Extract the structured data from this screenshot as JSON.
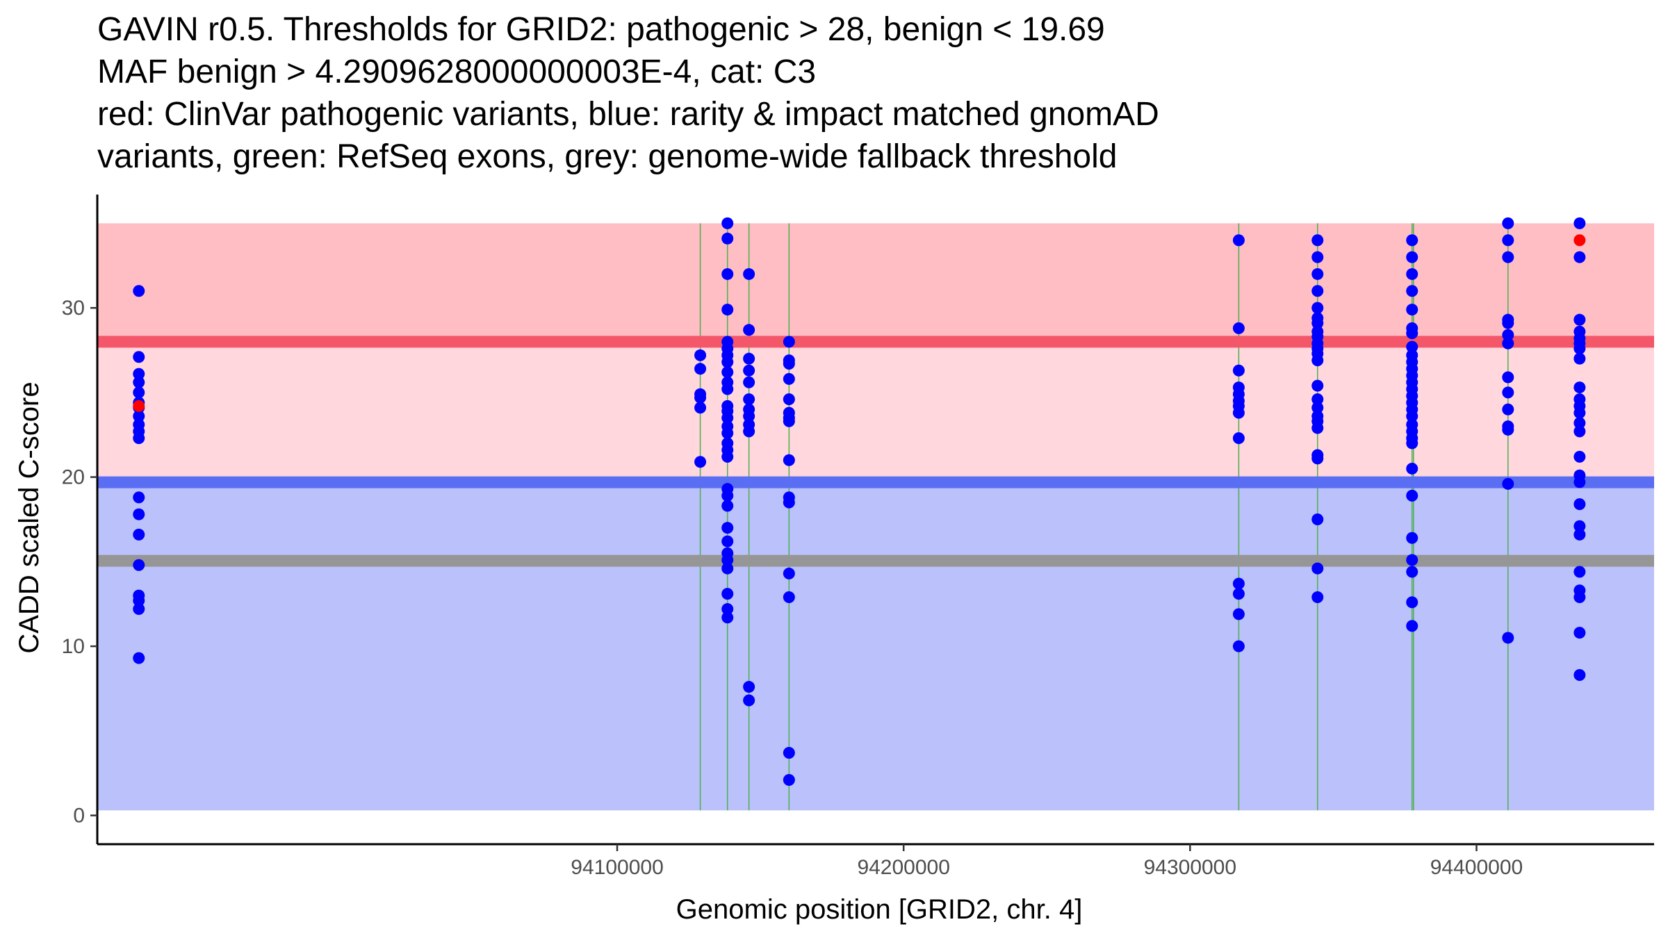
{
  "chart_data": {
    "type": "scatter",
    "title_lines": [
      "GAVIN r0.5. Thresholds for GRID2: pathogenic > 28, benign < 19.69",
      "MAF benign > 4.2909628000000003E-4, cat: C3",
      "red: ClinVar pathogenic variants, blue: rarity & impact matched gnomAD",
      "variants, green: RefSeq exons, grey: genome-wide fallback threshold"
    ],
    "xlabel": "Genomic position [GRID2, chr. 4]",
    "ylabel": "CADD scaled C-score",
    "xlim": [
      93918500,
      94462000
    ],
    "ylim": [
      -1.7,
      36.7
    ],
    "x_ticks": [
      94100000,
      94200000,
      94300000,
      94400000
    ],
    "x_tick_labels": [
      "94100000",
      "94200000",
      "94300000",
      "94400000"
    ],
    "y_ticks": [
      0,
      10,
      20,
      30
    ],
    "y_tick_labels": [
      "0",
      "10",
      "20",
      "30"
    ],
    "regions": {
      "pathogenic_high": {
        "from": 28,
        "to": 35,
        "color": "#ffbdc4"
      },
      "pathogenic_low": {
        "from": 19.69,
        "to": 28,
        "color": "#ffd7dd"
      },
      "benign": {
        "from": 0.3,
        "to": 19.69,
        "color": "#bbc1fa"
      }
    },
    "thresholds": {
      "pathogenic": {
        "value": 28,
        "color": "#f4576a"
      },
      "benign": {
        "value": 19.69,
        "color": "#5a6ef3"
      },
      "fallback": {
        "value": 15.05,
        "color": "#969696"
      }
    },
    "exon_positions": [
      94129000,
      94138500,
      94146000,
      94160000,
      94317000,
      94344500,
      94377500,
      94378000,
      94411000
    ],
    "colors": {
      "gnomad": "#0000ff",
      "clinvar": "#ff0000",
      "exon": "#4caf50"
    },
    "series": [
      {
        "name": "gnomAD",
        "points": [
          [
            93933000,
            31
          ],
          [
            93933000,
            27.1
          ],
          [
            93933000,
            26.1
          ],
          [
            93933000,
            25.6
          ],
          [
            93933000,
            25.0
          ],
          [
            93933000,
            24.4
          ],
          [
            93933000,
            24.1
          ],
          [
            93933000,
            23.6
          ],
          [
            93933000,
            23.1
          ],
          [
            93933000,
            22.7
          ],
          [
            93933000,
            22.3
          ],
          [
            93933000,
            18.8
          ],
          [
            93933000,
            17.8
          ],
          [
            93933000,
            16.6
          ],
          [
            93933000,
            14.8
          ],
          [
            93933000,
            13.0
          ],
          [
            93933000,
            12.7
          ],
          [
            93933000,
            12.2
          ],
          [
            93933000,
            9.3
          ],
          [
            94129000,
            27.2
          ],
          [
            94129000,
            26.4
          ],
          [
            94129000,
            24.9
          ],
          [
            94129000,
            24.7
          ],
          [
            94129000,
            24.1
          ],
          [
            94129000,
            20.9
          ],
          [
            94138500,
            35.0
          ],
          [
            94138500,
            34.1
          ],
          [
            94138500,
            32.0
          ],
          [
            94138500,
            29.9
          ],
          [
            94138500,
            28.0
          ],
          [
            94138500,
            27.6
          ],
          [
            94138500,
            27.2
          ],
          [
            94138500,
            26.8
          ],
          [
            94138500,
            26.2
          ],
          [
            94138500,
            25.6
          ],
          [
            94138500,
            25.2
          ],
          [
            94138500,
            24.2
          ],
          [
            94138500,
            23.9
          ],
          [
            94138500,
            23.5
          ],
          [
            94138500,
            23.0
          ],
          [
            94138500,
            22.6
          ],
          [
            94138500,
            22.0
          ],
          [
            94138500,
            21.6
          ],
          [
            94138500,
            21.2
          ],
          [
            94138500,
            19.3
          ],
          [
            94138500,
            18.9
          ],
          [
            94138500,
            18.3
          ],
          [
            94138500,
            17.0
          ],
          [
            94138500,
            16.2
          ],
          [
            94138500,
            15.5
          ],
          [
            94138500,
            15.1
          ],
          [
            94138500,
            14.6
          ],
          [
            94138500,
            13.1
          ],
          [
            94138500,
            12.2
          ],
          [
            94138500,
            11.7
          ],
          [
            94146000,
            32.0
          ],
          [
            94146000,
            28.7
          ],
          [
            94146000,
            27.0
          ],
          [
            94146000,
            26.3
          ],
          [
            94146000,
            25.6
          ],
          [
            94146000,
            24.6
          ],
          [
            94146000,
            24.0
          ],
          [
            94146000,
            23.6
          ],
          [
            94146000,
            23.1
          ],
          [
            94146000,
            22.7
          ],
          [
            94146000,
            7.6
          ],
          [
            94146000,
            6.8
          ],
          [
            94160000,
            28.0
          ],
          [
            94160000,
            26.9
          ],
          [
            94160000,
            26.7
          ],
          [
            94160000,
            25.8
          ],
          [
            94160000,
            24.6
          ],
          [
            94160000,
            23.8
          ],
          [
            94160000,
            23.5
          ],
          [
            94160000,
            23.3
          ],
          [
            94160000,
            21.0
          ],
          [
            94160000,
            18.8
          ],
          [
            94160000,
            18.5
          ],
          [
            94160000,
            14.3
          ],
          [
            94160000,
            12.9
          ],
          [
            94160000,
            3.7
          ],
          [
            94160000,
            2.1
          ],
          [
            94317000,
            34.0
          ],
          [
            94317000,
            28.8
          ],
          [
            94317000,
            26.3
          ],
          [
            94317000,
            25.3
          ],
          [
            94317000,
            24.9
          ],
          [
            94317000,
            24.5
          ],
          [
            94317000,
            24.2
          ],
          [
            94317000,
            23.8
          ],
          [
            94317000,
            22.3
          ],
          [
            94317000,
            13.7
          ],
          [
            94317000,
            13.1
          ],
          [
            94317000,
            11.9
          ],
          [
            94317000,
            10.0
          ],
          [
            94344500,
            34.0
          ],
          [
            94344500,
            33.0
          ],
          [
            94344500,
            32.0
          ],
          [
            94344500,
            31.0
          ],
          [
            94344500,
            30.0
          ],
          [
            94344500,
            29.4
          ],
          [
            94344500,
            29.1
          ],
          [
            94344500,
            28.6
          ],
          [
            94344500,
            28.3
          ],
          [
            94344500,
            27.9
          ],
          [
            94344500,
            27.6
          ],
          [
            94344500,
            27.3
          ],
          [
            94344500,
            26.9
          ],
          [
            94344500,
            25.4
          ],
          [
            94344500,
            24.6
          ],
          [
            94344500,
            24.1
          ],
          [
            94344500,
            23.6
          ],
          [
            94344500,
            23.3
          ],
          [
            94344500,
            22.9
          ],
          [
            94344500,
            21.3
          ],
          [
            94344500,
            21.1
          ],
          [
            94344500,
            17.5
          ],
          [
            94344500,
            14.6
          ],
          [
            94344500,
            12.9
          ],
          [
            94377500,
            34.0
          ],
          [
            94377500,
            33.0
          ],
          [
            94377500,
            32.0
          ],
          [
            94377500,
            31.0
          ],
          [
            94377500,
            29.9
          ],
          [
            94377500,
            28.8
          ],
          [
            94377500,
            28.5
          ],
          [
            94377500,
            27.7
          ],
          [
            94377500,
            27.2
          ],
          [
            94377500,
            26.8
          ],
          [
            94377500,
            26.4
          ],
          [
            94377500,
            26.0
          ],
          [
            94377500,
            25.6
          ],
          [
            94377500,
            25.2
          ],
          [
            94377500,
            24.8
          ],
          [
            94377500,
            24.4
          ],
          [
            94377500,
            24.0
          ],
          [
            94377500,
            23.6
          ],
          [
            94377500,
            23.1
          ],
          [
            94377500,
            22.7
          ],
          [
            94377500,
            22.3
          ],
          [
            94377500,
            22.0
          ],
          [
            94377500,
            20.5
          ],
          [
            94377500,
            18.9
          ],
          [
            94377500,
            16.4
          ],
          [
            94377500,
            15.1
          ],
          [
            94377500,
            14.4
          ],
          [
            94377500,
            12.6
          ],
          [
            94377500,
            11.2
          ],
          [
            94411000,
            35.0
          ],
          [
            94411000,
            34.0
          ],
          [
            94411000,
            33.0
          ],
          [
            94411000,
            29.3
          ],
          [
            94411000,
            29.1
          ],
          [
            94411000,
            28.4
          ],
          [
            94411000,
            27.9
          ],
          [
            94411000,
            25.9
          ],
          [
            94411000,
            25.0
          ],
          [
            94411000,
            24.0
          ],
          [
            94411000,
            23.0
          ],
          [
            94411000,
            22.8
          ],
          [
            94411000,
            19.6
          ],
          [
            94411000,
            10.5
          ],
          [
            94436000,
            35.0
          ],
          [
            94436000,
            33.0
          ],
          [
            94436000,
            29.3
          ],
          [
            94436000,
            28.6
          ],
          [
            94436000,
            28.2
          ],
          [
            94436000,
            27.9
          ],
          [
            94436000,
            27.6
          ],
          [
            94436000,
            27.0
          ],
          [
            94436000,
            25.3
          ],
          [
            94436000,
            24.6
          ],
          [
            94436000,
            24.2
          ],
          [
            94436000,
            23.8
          ],
          [
            94436000,
            23.2
          ],
          [
            94436000,
            22.7
          ],
          [
            94436000,
            21.2
          ],
          [
            94436000,
            20.1
          ],
          [
            94436000,
            19.7
          ],
          [
            94436000,
            18.4
          ],
          [
            94436000,
            17.1
          ],
          [
            94436000,
            16.6
          ],
          [
            94436000,
            14.4
          ],
          [
            94436000,
            13.3
          ],
          [
            94436000,
            12.9
          ],
          [
            94436000,
            10.8
          ],
          [
            94436000,
            8.3
          ]
        ]
      },
      {
        "name": "ClinVar",
        "points": [
          [
            93933000,
            24.2
          ],
          [
            94436000,
            34.0
          ]
        ]
      }
    ]
  }
}
